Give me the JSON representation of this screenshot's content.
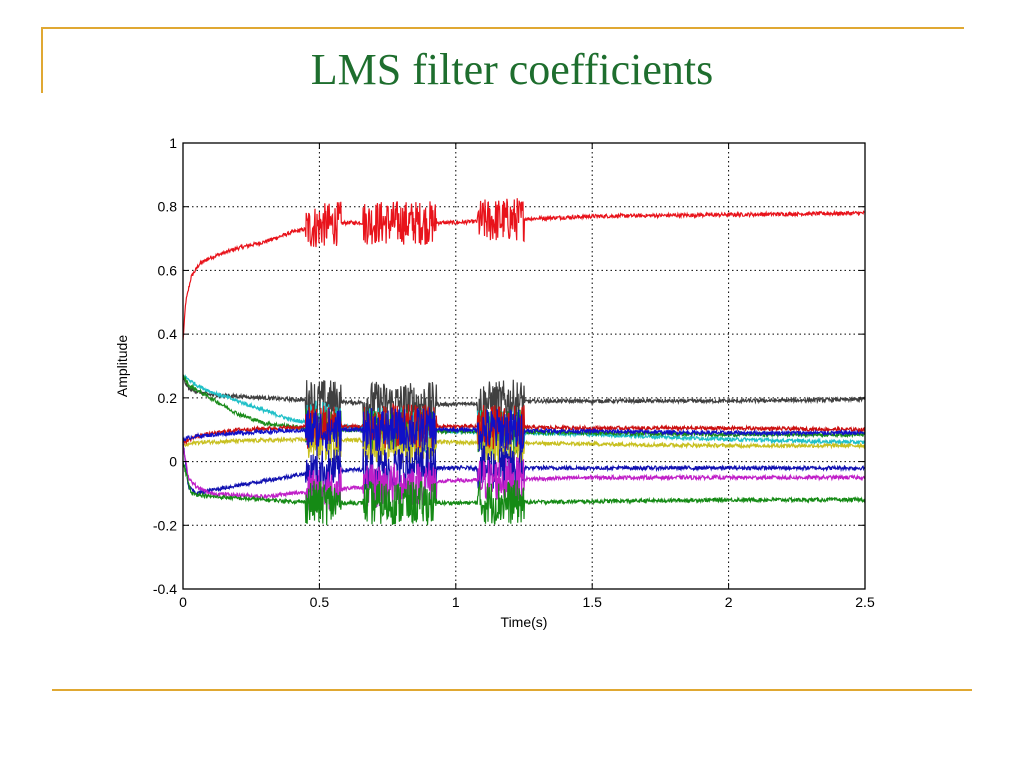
{
  "slide": {
    "title": "LMS filter coefficients",
    "accent_color": "#e0a832",
    "title_color": "#1e6e2e"
  },
  "chart_data": {
    "type": "line",
    "title": "",
    "xlabel": "Time(s)",
    "ylabel": "Amplitude",
    "xlim": [
      0,
      2.5
    ],
    "ylim": [
      -0.4,
      1
    ],
    "xticks": [
      0,
      0.5,
      1,
      1.5,
      2,
      2.5
    ],
    "xtick_labels": [
      "0",
      "0.5",
      "1",
      "1.5",
      "2",
      "2.5"
    ],
    "yticks": [
      -0.4,
      -0.2,
      0,
      0.2,
      0.4,
      0.6,
      0.8,
      1
    ],
    "ytick_labels": [
      "-0.4",
      "-0.2",
      "0",
      "0.2",
      "0.4",
      "0.6",
      "0.8",
      "1"
    ],
    "grid": true,
    "grid_style": "dotted",
    "noise_bursts": [
      [
        0.45,
        0.58
      ],
      [
        0.66,
        0.93
      ],
      [
        1.08,
        1.25
      ]
    ],
    "series": [
      {
        "color": "#e8131b",
        "x": [
          0,
          0.01,
          0.03,
          0.06,
          0.1,
          0.2,
          0.3,
          0.4,
          0.5,
          0.6,
          0.8,
          1.0,
          1.2,
          1.5,
          2.0,
          2.5
        ],
        "y": [
          0.38,
          0.5,
          0.58,
          0.62,
          0.64,
          0.67,
          0.69,
          0.72,
          0.74,
          0.75,
          0.75,
          0.75,
          0.76,
          0.77,
          0.775,
          0.78
        ]
      },
      {
        "color": "#404040",
        "x": [
          0,
          0.02,
          0.05,
          0.1,
          0.3,
          0.5,
          0.8,
          1.0,
          1.3,
          2.0,
          2.5
        ],
        "y": [
          0.26,
          0.23,
          0.22,
          0.21,
          0.2,
          0.19,
          0.18,
          0.18,
          0.19,
          0.19,
          0.195
        ]
      },
      {
        "color": "#20c0c8",
        "x": [
          0,
          0.05,
          0.1,
          0.2,
          0.3,
          0.4,
          0.6,
          0.8,
          1.0,
          1.5,
          2.0,
          2.5
        ],
        "y": [
          0.27,
          0.24,
          0.22,
          0.19,
          0.16,
          0.13,
          0.11,
          0.1,
          0.095,
          0.085,
          0.07,
          0.06
        ]
      },
      {
        "color": "#1a8c1a",
        "x": [
          0,
          0.02,
          0.1,
          0.2,
          0.3,
          0.5,
          1.0,
          1.5,
          2.0,
          2.5
        ],
        "y": [
          0.27,
          0.24,
          0.2,
          0.15,
          0.12,
          0.1,
          0.095,
          0.09,
          0.085,
          0.085
        ]
      },
      {
        "color": "#c8c020",
        "x": [
          0,
          0.05,
          0.2,
          0.5,
          1.0,
          1.5,
          2.0,
          2.5
        ],
        "y": [
          0.05,
          0.06,
          0.065,
          0.07,
          0.06,
          0.055,
          0.05,
          0.05
        ]
      },
      {
        "color": "#cc1010",
        "x": [
          0,
          0.05,
          0.2,
          0.5,
          1.0,
          1.5,
          2.0,
          2.5
        ],
        "y": [
          0.06,
          0.08,
          0.1,
          0.11,
          0.11,
          0.105,
          0.105,
          0.1
        ]
      },
      {
        "color": "#1010c8",
        "x": [
          0,
          0.05,
          0.2,
          0.5,
          1.0,
          1.5,
          2.0,
          2.5
        ],
        "y": [
          0.07,
          0.08,
          0.09,
          0.1,
          0.1,
          0.095,
          0.09,
          0.09
        ]
      },
      {
        "color": "#1010b0",
        "x": [
          0,
          0.02,
          0.05,
          0.1,
          0.3,
          0.5,
          0.8,
          1.0,
          1.5,
          2.0,
          2.5
        ],
        "y": [
          0.06,
          -0.08,
          -0.1,
          -0.09,
          -0.06,
          -0.03,
          -0.02,
          -0.02,
          -0.02,
          -0.02,
          -0.02
        ]
      },
      {
        "color": "#c020c8",
        "x": [
          0,
          0.02,
          0.05,
          0.1,
          0.3,
          0.5,
          1.0,
          1.5,
          2.0,
          2.5
        ],
        "y": [
          0.05,
          -0.05,
          -0.08,
          -0.1,
          -0.11,
          -0.09,
          -0.06,
          -0.05,
          -0.05,
          -0.05
        ]
      },
      {
        "color": "#158a15",
        "x": [
          0,
          0.03,
          0.1,
          0.3,
          0.5,
          0.8,
          1.0,
          1.5,
          2.0,
          2.5
        ],
        "y": [
          0.0,
          -0.1,
          -0.11,
          -0.12,
          -0.13,
          -0.13,
          -0.13,
          -0.125,
          -0.12,
          -0.12
        ]
      }
    ]
  }
}
